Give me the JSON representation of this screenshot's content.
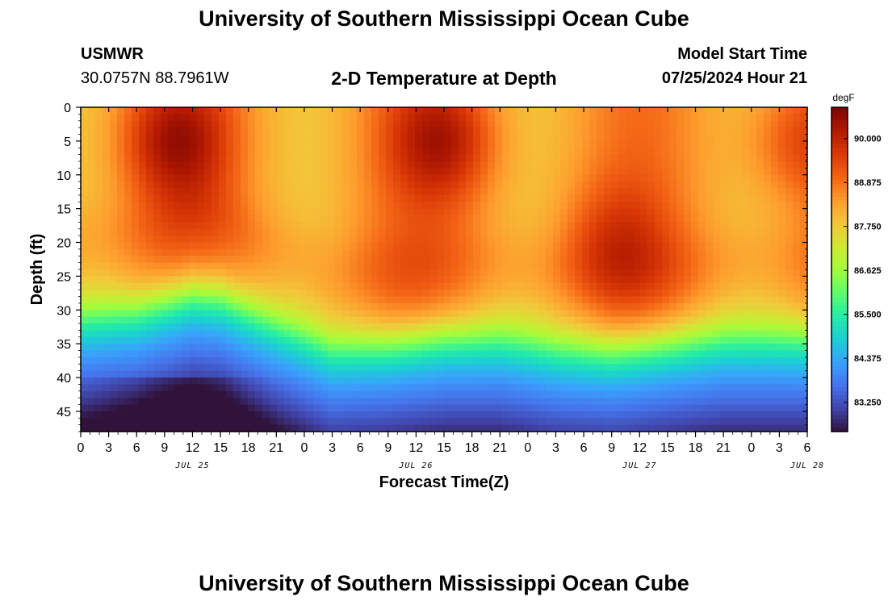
{
  "header": {
    "title": "University of Southern Mississippi Ocean Cube",
    "station": "USMWR",
    "coords": "30.0757N  88.7961W",
    "plot_title": "2-D Temperature at Depth",
    "model_start_label": "Model Start Time",
    "model_start_value": "07/25/2024 Hour 21"
  },
  "footer": {
    "title": "University of Southern Mississippi Ocean Cube"
  },
  "chart_data": {
    "type": "heatmap",
    "title": "2-D Temperature at Depth",
    "xlabel": "Forecast Time(Z)",
    "ylabel": "Depth (ft)",
    "x_ticks": [
      "0",
      "3",
      "6",
      "9",
      "12",
      "15",
      "18",
      "21",
      "0",
      "3",
      "6",
      "9",
      "12",
      "15",
      "18",
      "21",
      "0",
      "3",
      "6",
      "9",
      "12",
      "15",
      "18",
      "21",
      "0",
      "3",
      "6"
    ],
    "date_labels": [
      {
        "label": "JUL 25",
        "hour": 12
      },
      {
        "label": "JUL 26",
        "hour": 36
      },
      {
        "label": "JUL 27",
        "hour": 60
      },
      {
        "label": "JUL 28",
        "hour": 78
      }
    ],
    "xlim": [
      0,
      78
    ],
    "y_ticks": [
      0,
      5,
      10,
      15,
      20,
      25,
      30,
      35,
      40,
      45
    ],
    "ylim": [
      0,
      48
    ],
    "colorbar": {
      "unit": "degF",
      "min": 82.5,
      "max": 90.8,
      "ticks": [
        "90.000",
        "88.875",
        "87.750",
        "86.625",
        "85.500",
        "84.375",
        "83.250"
      ],
      "tick_values": [
        90.0,
        88.875,
        87.75,
        86.625,
        85.5,
        84.375,
        83.25
      ],
      "colors": [
        "#30123b",
        "#4145ab",
        "#4675ed",
        "#39a2fc",
        "#1bcfd4",
        "#24eca6",
        "#61fc6c",
        "#a4fc3b",
        "#d1e834",
        "#f3c63a",
        "#fe9b2d",
        "#f36315",
        "#d93806",
        "#b11901",
        "#7a0402"
      ]
    },
    "thermocline_depth_ft": [
      {
        "hour": 0,
        "depth": 30
      },
      {
        "hour": 6,
        "depth": 29
      },
      {
        "hour": 12,
        "depth": 26.5
      },
      {
        "hour": 15,
        "depth": 27
      },
      {
        "hour": 21,
        "depth": 31
      },
      {
        "hour": 27,
        "depth": 34.5
      },
      {
        "hour": 33,
        "depth": 34
      },
      {
        "hour": 39,
        "depth": 33
      },
      {
        "hour": 45,
        "depth": 33
      },
      {
        "hour": 51,
        "depth": 34.5
      },
      {
        "hour": 57,
        "depth": 35
      },
      {
        "hour": 63,
        "depth": 34
      },
      {
        "hour": 69,
        "depth": 33
      },
      {
        "hour": 75,
        "depth": 33
      },
      {
        "hour": 78,
        "depth": 33
      }
    ],
    "warm_cores": [
      {
        "hour": 10,
        "depth": 5,
        "temp": 90.6
      },
      {
        "hour": 39,
        "depth": 5,
        "temp": 90.5
      },
      {
        "hour": 57,
        "depth": 20,
        "temp": 89.7
      },
      {
        "hour": 77,
        "depth": 5,
        "temp": 89.9
      }
    ]
  }
}
